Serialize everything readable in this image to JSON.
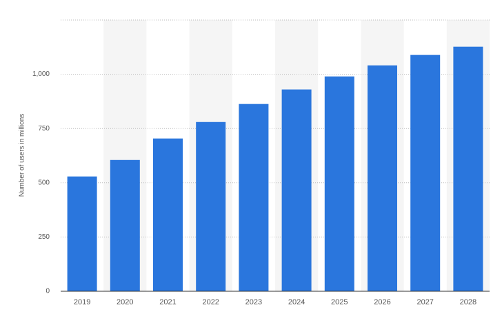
{
  "chart_data": {
    "type": "bar",
    "y_axis_label": "Number of users in millions",
    "categories": [
      "2019",
      "2020",
      "2021",
      "2022",
      "2023",
      "2024",
      "2025",
      "2026",
      "2027",
      "2028"
    ],
    "values": [
      529,
      605,
      704,
      780,
      863,
      930,
      990,
      1041,
      1089,
      1127
    ],
    "color": "#2a76dd",
    "ylim": [
      0,
      1250
    ],
    "yticks": [
      0,
      250,
      500,
      750,
      {
        "value": 1000,
        "label": "1,000"
      }
    ],
    "grid": true
  }
}
